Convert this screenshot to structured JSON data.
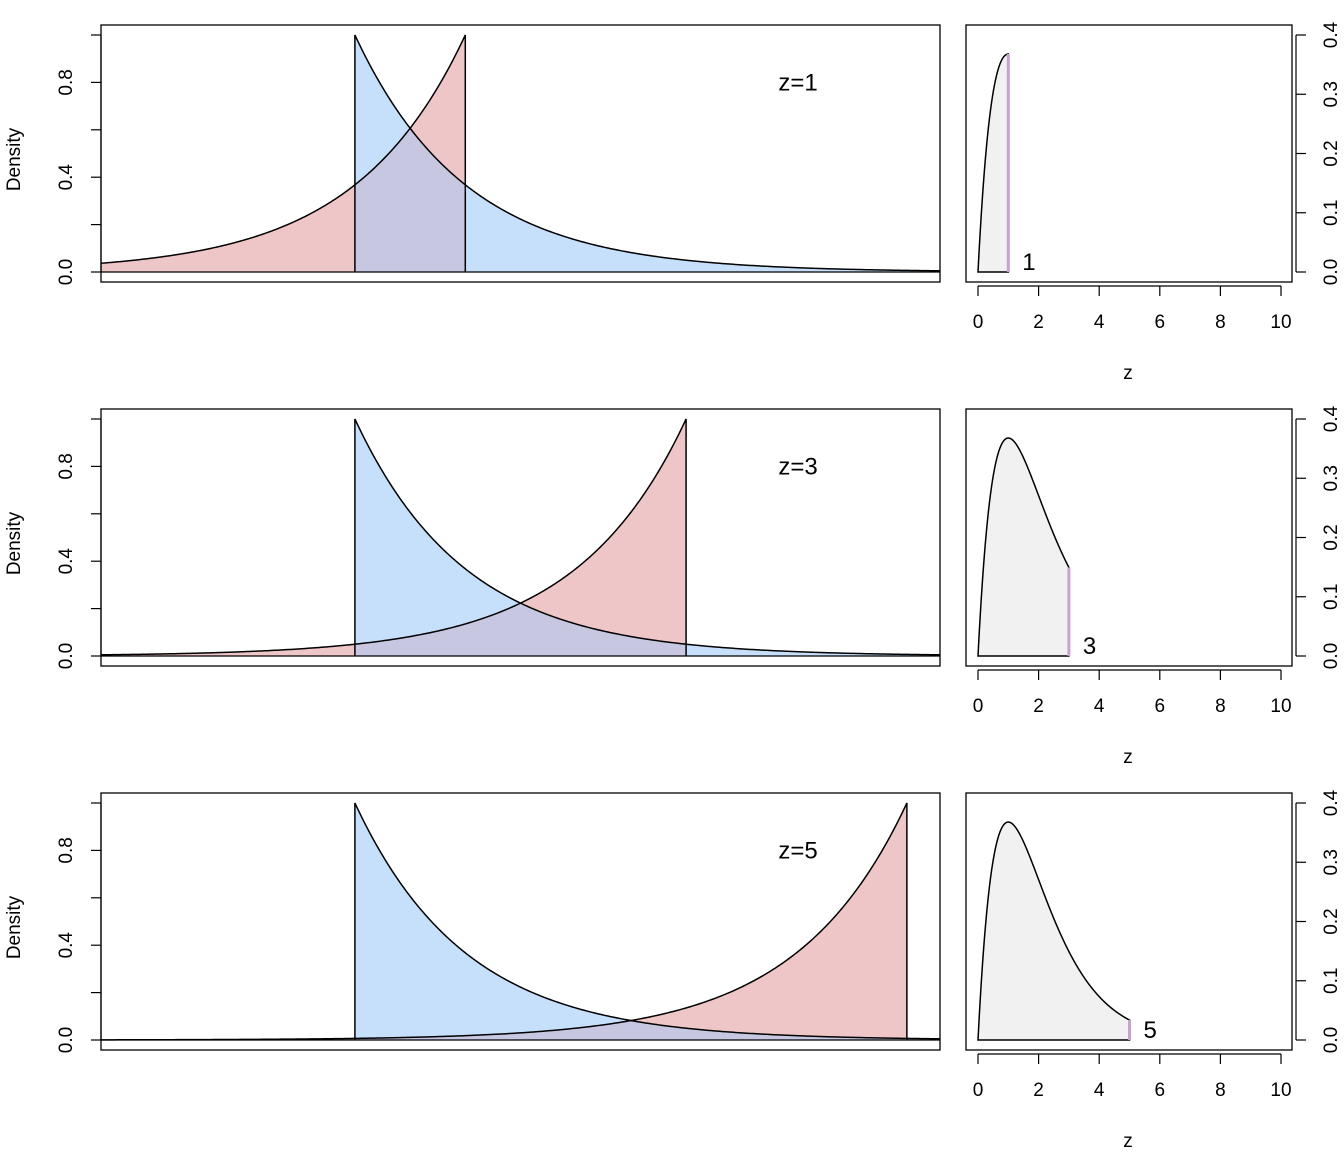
{
  "colors": {
    "blue_fill": "#c6e0fb",
    "red_fill": "#efc6c8",
    "overlap_fill": "#c7c7e2",
    "gray_fill": "#f1f1f1",
    "marker": "#c8a2cf"
  },
  "chart_data": [
    {
      "type": "area",
      "panel": "left",
      "row": 1,
      "ylabel": "Density",
      "annotation": "z=1",
      "x_ticks_shown": false,
      "xlim": [
        -2.3,
        5.3
      ],
      "ylim": [
        0,
        1
      ],
      "y_ticks": [
        0.0,
        0.2,
        0.4,
        0.6,
        0.8,
        1.0
      ],
      "y_tick_labels": [
        "0.0",
        "0.4",
        "0.8"
      ],
      "series": [
        {
          "fill": "blue",
          "shape": "exp(-(x - a))",
          "support": [
            0,
            5.3
          ],
          "peak_x": 0,
          "peak_y": 1
        },
        {
          "fill": "red",
          "shape": "exp(x - b)",
          "support": [
            -2.3,
            1
          ],
          "peak_x": 1,
          "peak_y": 1
        }
      ]
    },
    {
      "type": "area",
      "panel": "right",
      "row": 1,
      "xlabel": "z",
      "xlim": [
        0,
        10
      ],
      "ylim": [
        0,
        0.4
      ],
      "x_ticks": [
        0,
        2,
        4,
        6,
        8,
        10
      ],
      "x_tick_labels": [
        "0",
        "2",
        "4",
        "6",
        "8",
        "10"
      ],
      "y_ticks": [
        0.0,
        0.1,
        0.2,
        0.3,
        0.4
      ],
      "y_tick_labels": [
        "0.0",
        "0.1",
        "0.2",
        "0.3",
        "0.4"
      ],
      "density": "z * exp(-z)",
      "shaded_to": 1,
      "marker_label": "1"
    },
    {
      "type": "area",
      "panel": "left",
      "row": 2,
      "ylabel": "Density",
      "annotation": "z=3",
      "x_ticks_shown": false,
      "xlim": [
        -2.3,
        5.3
      ],
      "ylim": [
        0,
        1
      ],
      "y_ticks": [
        0.0,
        0.2,
        0.4,
        0.6,
        0.8,
        1.0
      ],
      "y_tick_labels": [
        "0.0",
        "0.4",
        "0.8"
      ],
      "series": [
        {
          "fill": "blue",
          "shape": "exp(-(x - a))",
          "support": [
            0,
            5.3
          ],
          "peak_x": 0,
          "peak_y": 1
        },
        {
          "fill": "red",
          "shape": "exp(x - b)",
          "support": [
            -2.3,
            3
          ],
          "peak_x": 3,
          "peak_y": 1
        }
      ]
    },
    {
      "type": "area",
      "panel": "right",
      "row": 2,
      "xlabel": "z",
      "xlim": [
        0,
        10
      ],
      "ylim": [
        0,
        0.4
      ],
      "x_ticks": [
        0,
        2,
        4,
        6,
        8,
        10
      ],
      "x_tick_labels": [
        "0",
        "2",
        "4",
        "6",
        "8",
        "10"
      ],
      "y_ticks": [
        0.0,
        0.1,
        0.2,
        0.3,
        0.4
      ],
      "y_tick_labels": [
        "0.0",
        "0.1",
        "0.2",
        "0.3",
        "0.4"
      ],
      "density": "z * exp(-z)",
      "shaded_to": 3,
      "marker_label": "3"
    },
    {
      "type": "area",
      "panel": "left",
      "row": 3,
      "ylabel": "Density",
      "annotation": "z=5",
      "x_ticks_shown": false,
      "xlim": [
        -2.3,
        5.3
      ],
      "ylim": [
        0,
        1
      ],
      "y_ticks": [
        0.0,
        0.2,
        0.4,
        0.6,
        0.8,
        1.0
      ],
      "y_tick_labels": [
        "0.0",
        "0.4",
        "0.8"
      ],
      "series": [
        {
          "fill": "blue",
          "shape": "exp(-(x - a))",
          "support": [
            0,
            5.3
          ],
          "peak_x": 0,
          "peak_y": 1
        },
        {
          "fill": "red",
          "shape": "exp(x - b)",
          "support": [
            -2.3,
            5
          ],
          "peak_x": 5,
          "peak_y": 1
        }
      ]
    },
    {
      "type": "area",
      "panel": "right",
      "row": 3,
      "xlabel": "z",
      "xlim": [
        0,
        10
      ],
      "ylim": [
        0,
        0.4
      ],
      "x_ticks": [
        0,
        2,
        4,
        6,
        8,
        10
      ],
      "x_tick_labels": [
        "0",
        "2",
        "4",
        "6",
        "8",
        "10"
      ],
      "y_ticks": [
        0.0,
        0.1,
        0.2,
        0.3,
        0.4
      ],
      "y_tick_labels": [
        "0.0",
        "0.1",
        "0.2",
        "0.3",
        "0.4"
      ],
      "density": "z * exp(-z)",
      "shaded_to": 5,
      "marker_label": "5"
    }
  ]
}
